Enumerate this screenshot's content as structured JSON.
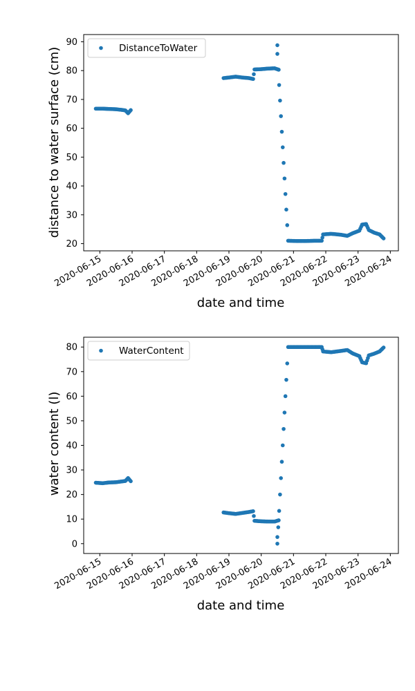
{
  "chart_data": [
    {
      "type": "scatter",
      "xlabel": "date and time",
      "ylabel": "distance to water surface (cm)",
      "x_ticks": [
        "2020-06-15",
        "2020-06-16",
        "2020-06-17",
        "2020-06-18",
        "2020-06-19",
        "2020-06-20",
        "2020-06-21",
        "2020-06-22",
        "2020-06-23",
        "2020-06-24"
      ],
      "y_ticks": [
        20,
        30,
        40,
        50,
        60,
        70,
        80,
        90
      ],
      "xlim": [
        "2020-06-14 12:00",
        "2020-06-24 06:00"
      ],
      "ylim": [
        17.5,
        92.5
      ],
      "legend": {
        "position": "top-left"
      },
      "grid": false,
      "series": [
        {
          "name": "DistanceToWater",
          "color": "#1f77b4",
          "points": [
            [
              "2020-06-14 21:00",
              66.8
            ],
            [
              "2020-06-15 02:00",
              66.8
            ],
            [
              "2020-06-15 07:00",
              66.7
            ],
            [
              "2020-06-15 12:00",
              66.6
            ],
            [
              "2020-06-15 16:00",
              66.4
            ],
            [
              "2020-06-15 19:00",
              66.2
            ],
            [
              "2020-06-15 21:00",
              65.2
            ],
            [
              "2020-06-15 23:00",
              66.3
            ],
            [
              "2020-06-18 20:00",
              77.4
            ],
            [
              "2020-06-19 00:00",
              77.6
            ],
            [
              "2020-06-19 05:00",
              77.9
            ],
            [
              "2020-06-19 10:00",
              77.6
            ],
            [
              "2020-06-19 15:00",
              77.4
            ],
            [
              "2020-06-19 18:00",
              77.1
            ],
            [
              "2020-06-19 19:00",
              80.4
            ],
            [
              "2020-06-20 00:00",
              80.5
            ],
            [
              "2020-06-20 05:00",
              80.7
            ],
            [
              "2020-06-20 10:00",
              80.8
            ],
            [
              "2020-06-20 13:00",
              80.3
            ],
            [
              "2020-06-20 12:00",
              88.8
            ],
            [
              "2020-06-20 12:00",
              85.8
            ],
            [
              "2020-06-20 20:00",
              21.0
            ],
            [
              "2020-06-21 02:00",
              20.9
            ],
            [
              "2020-06-21 09:00",
              20.9
            ],
            [
              "2020-06-21 16:00",
              21.0
            ],
            [
              "2020-06-21 21:00",
              21.0
            ],
            [
              "2020-06-21 22:00",
              23.2
            ],
            [
              "2020-06-22 04:00",
              23.4
            ],
            [
              "2020-06-22 11:00",
              23.1
            ],
            [
              "2020-06-22 16:00",
              22.7
            ],
            [
              "2020-06-22 20:00",
              23.6
            ],
            [
              "2020-06-23 01:00",
              24.5
            ],
            [
              "2020-06-23 03:00",
              26.6
            ],
            [
              "2020-06-23 06:00",
              26.8
            ],
            [
              "2020-06-23 08:00",
              24.7
            ],
            [
              "2020-06-23 12:00",
              23.8
            ],
            [
              "2020-06-23 16:00",
              23.2
            ],
            [
              "2020-06-23 19:00",
              21.8
            ]
          ]
        }
      ]
    },
    {
      "type": "scatter",
      "xlabel": "date and time",
      "ylabel": "water content (l)",
      "x_ticks": [
        "2020-06-15",
        "2020-06-16",
        "2020-06-17",
        "2020-06-18",
        "2020-06-19",
        "2020-06-20",
        "2020-06-21",
        "2020-06-22",
        "2020-06-23",
        "2020-06-24"
      ],
      "y_ticks": [
        0,
        10,
        20,
        30,
        40,
        50,
        60,
        70,
        80
      ],
      "xlim": [
        "2020-06-14 12:00",
        "2020-06-24 06:00"
      ],
      "ylim": [
        -4,
        84
      ],
      "legend": {
        "position": "top-left"
      },
      "grid": false,
      "series": [
        {
          "name": "WaterContent",
          "color": "#1f77b4",
          "points": [
            [
              "2020-06-14 21:00",
              24.8
            ],
            [
              "2020-06-15 02:00",
              24.6
            ],
            [
              "2020-06-15 07:00",
              24.9
            ],
            [
              "2020-06-15 12:00",
              25.0
            ],
            [
              "2020-06-15 16:00",
              25.3
            ],
            [
              "2020-06-15 19:00",
              25.5
            ],
            [
              "2020-06-15 21:00",
              26.7
            ],
            [
              "2020-06-15 23:00",
              25.4
            ],
            [
              "2020-06-18 20:00",
              12.7
            ],
            [
              "2020-06-19 00:00",
              12.4
            ],
            [
              "2020-06-19 05:00",
              12.1
            ],
            [
              "2020-06-19 10:00",
              12.5
            ],
            [
              "2020-06-19 15:00",
              12.9
            ],
            [
              "2020-06-19 18:00",
              13.2
            ],
            [
              "2020-06-19 19:00",
              9.3
            ],
            [
              "2020-06-20 00:00",
              9.1
            ],
            [
              "2020-06-20 05:00",
              9.0
            ],
            [
              "2020-06-20 10:00",
              9.0
            ],
            [
              "2020-06-20 13:00",
              9.5
            ],
            [
              "2020-06-20 12:00",
              2.7
            ],
            [
              "2020-06-20 12:00",
              0.0
            ],
            [
              "2020-06-20 20:00",
              80.0
            ],
            [
              "2020-06-21 02:00",
              80.0
            ],
            [
              "2020-06-21 09:00",
              80.0
            ],
            [
              "2020-06-21 16:00",
              80.0
            ],
            [
              "2020-06-21 21:00",
              80.0
            ],
            [
              "2020-06-21 22:00",
              78.2
            ],
            [
              "2020-06-22 04:00",
              77.9
            ],
            [
              "2020-06-22 11:00",
              78.4
            ],
            [
              "2020-06-22 16:00",
              78.8
            ],
            [
              "2020-06-22 20:00",
              77.4
            ],
            [
              "2020-06-23 01:00",
              76.3
            ],
            [
              "2020-06-23 03:00",
              73.8
            ],
            [
              "2020-06-23 06:00",
              73.4
            ],
            [
              "2020-06-23 08:00",
              76.6
            ],
            [
              "2020-06-23 12:00",
              77.3
            ],
            [
              "2020-06-23 16:00",
              78.2
            ],
            [
              "2020-06-23 19:00",
              79.8
            ]
          ]
        }
      ]
    }
  ]
}
